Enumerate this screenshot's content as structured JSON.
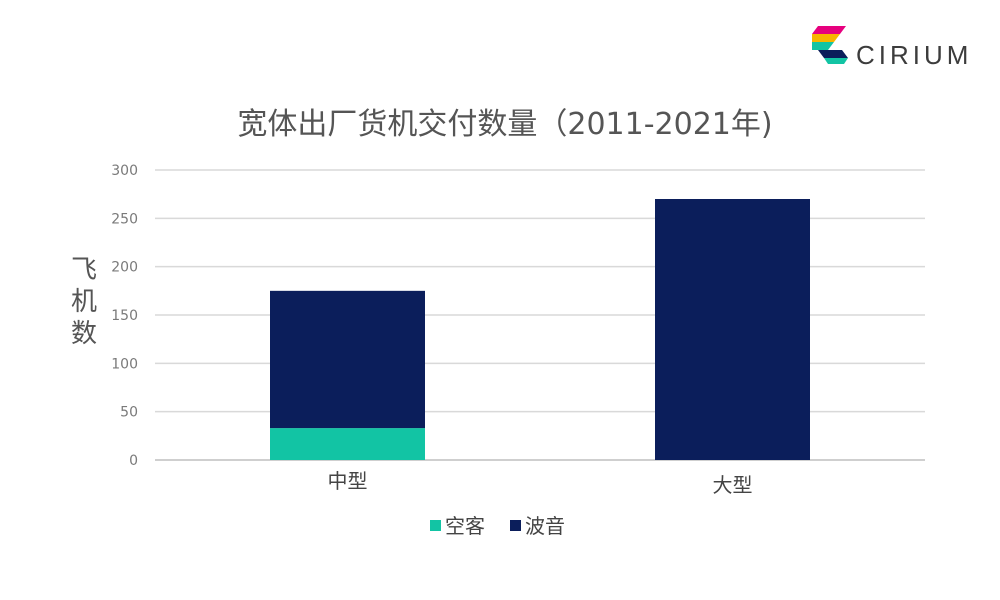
{
  "brand": {
    "name": "CIRIUM"
  },
  "colors": {
    "airbus": "#12C4A4",
    "boeing": "#0B1E5B",
    "grid": "#d9d9d9",
    "axis": "#bfbfbf"
  },
  "chart_data": {
    "type": "bar",
    "stacked": true,
    "title": "宽体出厂货机交付数量（2011-2021年)",
    "ylabel": "飞机数",
    "xlabel": "",
    "categories": [
      "中型",
      "大型"
    ],
    "series": [
      {
        "name": "空客",
        "values": [
          33,
          0
        ]
      },
      {
        "name": "波音",
        "values": [
          142,
          270
        ]
      }
    ],
    "ylim": [
      0,
      300
    ],
    "yticks": [
      0,
      50,
      100,
      150,
      200,
      250,
      300
    ],
    "grid": true,
    "legend": "bottom"
  }
}
